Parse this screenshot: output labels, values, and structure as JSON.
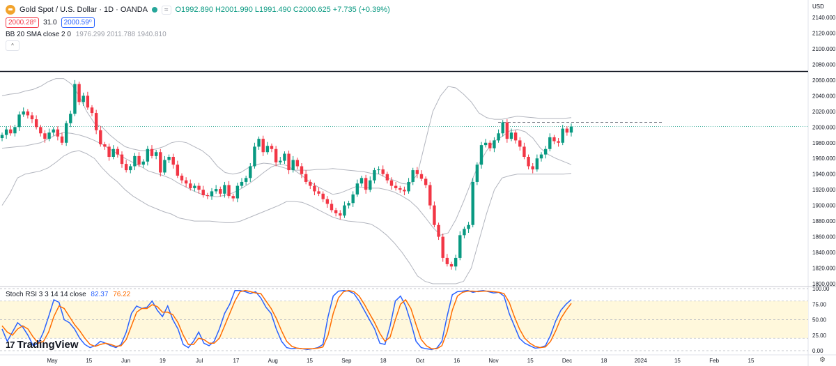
{
  "header": {
    "symbol_title": "Gold Spot / U.S. Dollar · 1D · OANDA",
    "ohlc_text": "O1992.890 H2001.990 L1991.490 C2000.625 +7.735 (+0.39%)",
    "sell_price": "2000.28⁰",
    "spread": "31.0",
    "buy_price": "2000.59⁰"
  },
  "indicators": {
    "bb_label": "BB 20 SMA close 2 0",
    "bb_values": "1976.299  2011.788  1940.810",
    "rsi_label": "Stoch RSI 3 3 14 14 close",
    "rsi_k": "82.37",
    "rsi_d": "76.22"
  },
  "price_axis": {
    "currency": "USD",
    "labels": [
      "2140.000",
      "2120.000",
      "2100.000",
      "2080.000",
      "2060.000",
      "2040.000",
      "2020.000",
      "2000.000",
      "1980.000",
      "1960.000",
      "1940.000",
      "1920.000",
      "1900.000",
      "1880.000",
      "1860.000",
      "1840.000",
      "1820.000",
      "1800.000"
    ]
  },
  "rsi_axis": {
    "labels": [
      "100.00",
      "75.00",
      "50.00",
      "25.00",
      "0.00"
    ]
  },
  "time_axis": {
    "labels": [
      "May",
      "15",
      "Jun",
      "19",
      "Jul",
      "17",
      "Aug",
      "15",
      "Sep",
      "18",
      "Oct",
      "16",
      "Nov",
      "15",
      "Dec",
      "18",
      "2024",
      "15",
      "Feb",
      "15"
    ]
  },
  "branding": {
    "logo_text": "TradingView",
    "logo_mark": "17"
  },
  "colors": {
    "up": "#089981",
    "down": "#f23645",
    "bb": "#b2b5be",
    "k_line": "#2962ff",
    "d_line": "#ff6d00",
    "rsi_band": "#fff8dc"
  },
  "chart_data": [
    {
      "type": "candlestick",
      "title": "Gold Spot / U.S. Dollar · 1D · OANDA",
      "timeframe": "1D",
      "ylim": [
        1800,
        2140
      ],
      "horizontal_levels": [
        2071,
        2006
      ],
      "x_labels": [
        "May",
        "15",
        "Jun",
        "19",
        "Jul",
        "17",
        "Aug",
        "15",
        "Sep",
        "18",
        "Oct",
        "16",
        "Nov",
        "15",
        "Dec",
        "18",
        "2024",
        "15",
        "Feb",
        "15"
      ],
      "series": [
        {
          "name": "close",
          "values": [
            1990,
            1997,
            1992,
            2000,
            2016,
            2020,
            2015,
            2010,
            2000,
            1992,
            1985,
            1993,
            1997,
            1988,
            1980,
            2005,
            2017,
            2055,
            2032,
            2040,
            2025,
            2018,
            1996,
            1978,
            1975,
            1962,
            1972,
            1965,
            1953,
            1945,
            1950,
            1963,
            1952,
            1956,
            1972,
            1963,
            1968,
            1942,
            1958,
            1962,
            1952,
            1938,
            1932,
            1928,
            1922,
            1925,
            1920,
            1913,
            1912,
            1918,
            1921,
            1915,
            1926,
            1912,
            1909,
            1925,
            1930,
            1935,
            1950,
            1975,
            1985,
            1968,
            1976,
            1972,
            1955,
            1957,
            1966,
            1945,
            1958,
            1950,
            1940,
            1930,
            1925,
            1918,
            1915,
            1908,
            1902,
            1894,
            1890,
            1887,
            1900,
            1903,
            1914,
            1928,
            1935,
            1920,
            1932,
            1945,
            1946,
            1940,
            1932,
            1925,
            1922,
            1920,
            1918,
            1930,
            1945,
            1940,
            1934,
            1926,
            1900,
            1875,
            1860,
            1833,
            1825,
            1822,
            1833,
            1862,
            1870,
            1875,
            1930,
            1952,
            1977,
            1980,
            1973,
            1983,
            1992,
            2006,
            1985,
            1993,
            1983,
            1975,
            1962,
            1950,
            1946,
            1960,
            1965,
            1972,
            1987,
            1982,
            1980,
            1998,
            1993,
            2000.625
          ]
        },
        {
          "name": "BB basis",
          "values": [
            1973,
            1974,
            1975,
            1976,
            1978,
            1980,
            1985,
            1990,
            1993,
            1992,
            1990,
            1987,
            1983,
            1978,
            1972,
            1966,
            1960,
            1955,
            1950,
            1944,
            1941,
            1938,
            1934,
            1928,
            1923,
            1918,
            1914,
            1912,
            1911,
            1913,
            1916,
            1921,
            1927,
            1934,
            1942,
            1949,
            1953,
            1951,
            1945,
            1938,
            1930,
            1924,
            1919,
            1914,
            1916,
            1920,
            1924,
            1923,
            1922,
            1922,
            1920,
            1917,
            1912,
            1906,
            1897,
            1885,
            1872,
            1862,
            1865,
            1882,
            1905,
            1930,
            1953,
            1970,
            1982,
            1988,
            1995,
            1997,
            1994,
            1986,
            1973,
            1965,
            1960,
            1956,
            1952
          ]
        },
        {
          "name": "BB upper",
          "values": [
            2040,
            2042,
            2043,
            2046,
            2048,
            2052,
            2058,
            2062,
            2062,
            2055,
            2040,
            2020,
            2005,
            2000,
            1990,
            1982,
            1975,
            1972,
            1970,
            1970,
            1972,
            1975,
            1980,
            1982,
            1980,
            1975,
            1970,
            1962,
            1950,
            1942,
            1940,
            1942,
            1948,
            1952,
            1954,
            1953,
            1950,
            1947,
            1945,
            1945,
            1945,
            1946,
            1946,
            1947,
            1946,
            1945,
            1944,
            1943,
            1941,
            1940,
            1935,
            1932,
            1928,
            1927,
            1940,
            1980,
            2020,
            2040,
            2052,
            2050,
            2042,
            2032,
            2018,
            2012,
            2010,
            2010,
            2012,
            2014,
            2013,
            2012,
            2011,
            2011,
            2011,
            2011,
            2012
          ]
        },
        {
          "name": "BB lower",
          "values": [
            1900,
            1915,
            1935,
            1940,
            1942,
            1944,
            1948,
            1955,
            1963,
            1968,
            1970,
            1966,
            1960,
            1948,
            1938,
            1930,
            1920,
            1912,
            1906,
            1900,
            1896,
            1892,
            1889,
            1884,
            1882,
            1880,
            1880,
            1880,
            1879,
            1878,
            1878,
            1880,
            1884,
            1888,
            1892,
            1896,
            1900,
            1905,
            1905,
            1904,
            1900,
            1895,
            1890,
            1885,
            1882,
            1880,
            1879,
            1878,
            1876,
            1870,
            1862,
            1852,
            1840,
            1826,
            1810,
            1803,
            1800,
            1800,
            1800,
            1800,
            1803,
            1820,
            1855,
            1890,
            1920,
            1935,
            1938,
            1940,
            1940,
            1940,
            1940,
            1940,
            1940,
            1940,
            1941
          ]
        }
      ]
    },
    {
      "type": "line",
      "title": "Stoch RSI 3 3 14 14 close",
      "ylim": [
        0,
        100
      ],
      "bands": [
        20,
        80
      ],
      "series": [
        {
          "name": "K",
          "values": [
            35,
            15,
            30,
            45,
            38,
            25,
            8,
            12,
            30,
            55,
            82,
            78,
            50,
            45,
            35,
            20,
            10,
            5,
            8,
            15,
            12,
            8,
            5,
            10,
            30,
            60,
            72,
            68,
            70,
            80,
            65,
            55,
            72,
            50,
            35,
            10,
            5,
            15,
            30,
            12,
            8,
            15,
            35,
            60,
            75,
            97,
            97,
            95,
            92,
            95,
            85,
            70,
            60,
            35,
            15,
            5,
            3,
            4,
            3,
            2,
            3,
            5,
            10,
            55,
            88,
            96,
            97,
            96,
            92,
            80,
            65,
            50,
            35,
            12,
            10,
            40,
            80,
            88,
            72,
            45,
            15,
            5,
            3,
            2,
            4,
            15,
            55,
            90,
            95,
            96,
            97,
            94,
            96,
            97,
            95,
            93,
            94,
            88,
            60,
            40,
            20,
            12,
            8,
            4,
            5,
            8,
            25,
            48,
            65,
            75,
            82.37
          ]
        },
        {
          "name": "D",
          "values": [
            40,
            30,
            25,
            35,
            40,
            35,
            22,
            12,
            15,
            30,
            55,
            72,
            68,
            55,
            42,
            32,
            20,
            10,
            7,
            10,
            12,
            10,
            7,
            8,
            18,
            40,
            62,
            68,
            68,
            74,
            71,
            62,
            62,
            58,
            45,
            25,
            10,
            10,
            20,
            18,
            12,
            12,
            20,
            40,
            60,
            80,
            95,
            97,
            95,
            93,
            92,
            80,
            68,
            52,
            32,
            15,
            7,
            4,
            3,
            3,
            3,
            4,
            6,
            25,
            60,
            85,
            95,
            97,
            95,
            88,
            75,
            60,
            45,
            28,
            15,
            22,
            50,
            75,
            82,
            68,
            42,
            18,
            8,
            3,
            3,
            8,
            30,
            65,
            88,
            94,
            96,
            96,
            95,
            96,
            96,
            95,
            94,
            92,
            78,
            55,
            35,
            20,
            12,
            7,
            5,
            6,
            15,
            32,
            52,
            65,
            76.22
          ]
        }
      ]
    }
  ]
}
